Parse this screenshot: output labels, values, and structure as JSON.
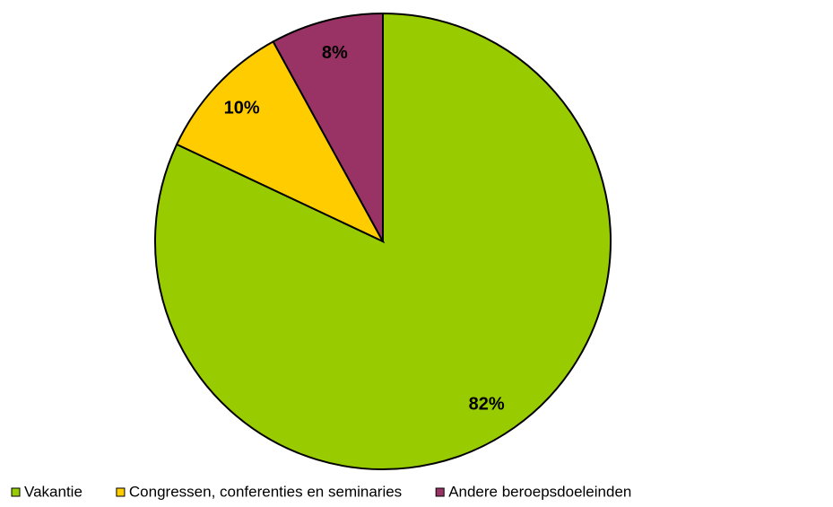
{
  "chart_data": {
    "type": "pie",
    "categories": [
      "Vakantie",
      "Congressen, conferenties en seminaries",
      "Andere beroepsdoeleinden"
    ],
    "values": [
      82,
      10,
      8
    ],
    "value_labels": [
      "82%",
      "10%",
      "8%"
    ],
    "colors": [
      "#99cc00",
      "#ffcc00",
      "#993366"
    ],
    "legend": "bottom"
  }
}
